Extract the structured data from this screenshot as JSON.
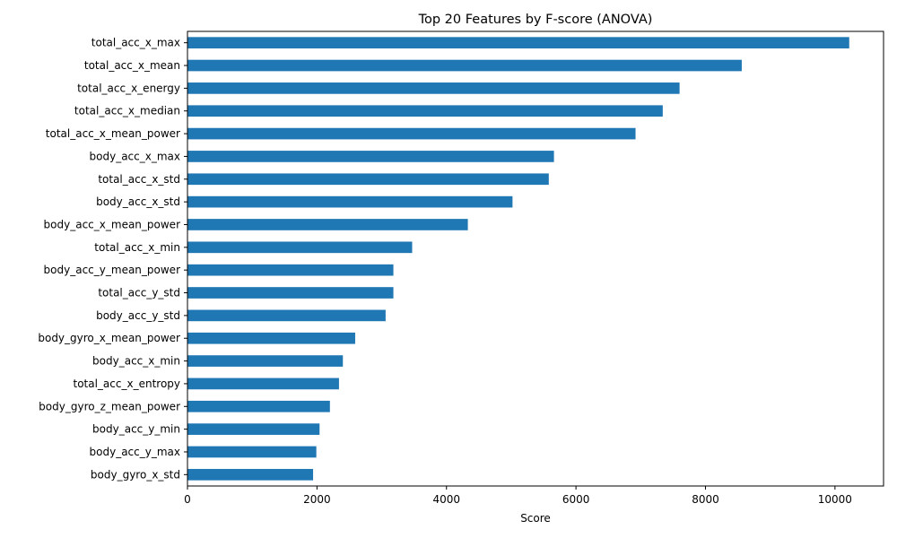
{
  "chart_data": {
    "type": "bar",
    "orientation": "horizontal",
    "title": "Top 20 Features by F-score (ANOVA)",
    "xlabel": "Score",
    "ylabel": "",
    "xlim": [
      0,
      10750
    ],
    "xticks": [
      0,
      2000,
      4000,
      6000,
      8000,
      10000
    ],
    "grid": false,
    "legend": "none",
    "bar_color": "#1f77b4",
    "categories": [
      "total_acc_x_max",
      "total_acc_x_mean",
      "total_acc_x_energy",
      "total_acc_x_median",
      "total_acc_x_mean_power",
      "body_acc_x_max",
      "total_acc_x_std",
      "body_acc_x_std",
      "body_acc_x_mean_power",
      "total_acc_x_min",
      "body_acc_y_mean_power",
      "total_acc_y_std",
      "body_acc_y_std",
      "body_gyro_x_mean_power",
      "body_acc_x_min",
      "total_acc_x_entropy",
      "body_gyro_z_mean_power",
      "body_acc_y_min",
      "body_acc_y_max",
      "body_gyro_x_std"
    ],
    "values": [
      10220,
      8560,
      7600,
      7340,
      6920,
      5660,
      5580,
      5020,
      4330,
      3470,
      3180,
      3180,
      3060,
      2590,
      2400,
      2340,
      2200,
      2040,
      1990,
      1940
    ]
  }
}
